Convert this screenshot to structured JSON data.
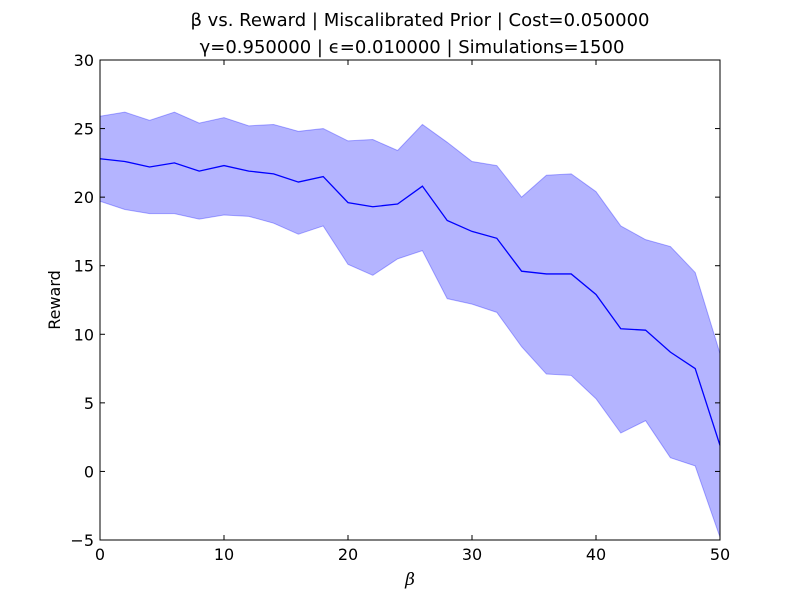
{
  "chart_data": {
    "type": "line",
    "title_line1": "β vs. Reward | Miscalibrated Prior | Cost=0.050000",
    "title_line2": "γ=0.950000 | ϵ=0.010000 | Simulations=1500",
    "xlabel": "β",
    "ylabel": "Reward",
    "xlim": [
      0,
      50
    ],
    "ylim": [
      -5,
      30
    ],
    "xticks": [
      0,
      10,
      20,
      30,
      40,
      50
    ],
    "yticks": [
      -5,
      0,
      5,
      10,
      15,
      20,
      25,
      30
    ],
    "grid": false,
    "x": [
      0,
      2,
      4,
      6,
      8,
      10,
      12,
      14,
      16,
      18,
      20,
      22,
      24,
      26,
      28,
      30,
      32,
      34,
      36,
      38,
      40,
      42,
      44,
      46,
      48,
      50
    ],
    "series": [
      {
        "values": [
          22.8,
          22.6,
          22.2,
          22.5,
          21.9,
          22.3,
          21.9,
          21.7,
          21.1,
          21.5,
          19.6,
          19.3,
          19.5,
          20.8,
          18.3,
          17.5,
          17.0,
          14.6,
          14.4,
          14.4,
          12.9,
          10.4,
          10.3,
          8.7,
          7.5,
          1.9
        ],
        "upper": [
          25.9,
          26.2,
          25.6,
          26.2,
          25.4,
          25.8,
          25.2,
          25.3,
          24.8,
          25.0,
          24.1,
          24.2,
          23.4,
          25.3,
          24.0,
          22.6,
          22.3,
          20.0,
          21.6,
          21.7,
          20.4,
          17.9,
          16.9,
          16.4,
          14.5,
          8.6
        ],
        "lower": [
          19.7,
          19.1,
          18.8,
          18.8,
          18.4,
          18.7,
          18.6,
          18.1,
          17.3,
          17.9,
          15.1,
          14.3,
          15.5,
          16.1,
          12.6,
          12.2,
          11.6,
          9.1,
          7.1,
          7.0,
          5.3,
          2.8,
          3.7,
          1.0,
          0.4,
          -4.8
        ],
        "line_color": "#0000ff",
        "band_color": "#7777ff"
      }
    ]
  }
}
